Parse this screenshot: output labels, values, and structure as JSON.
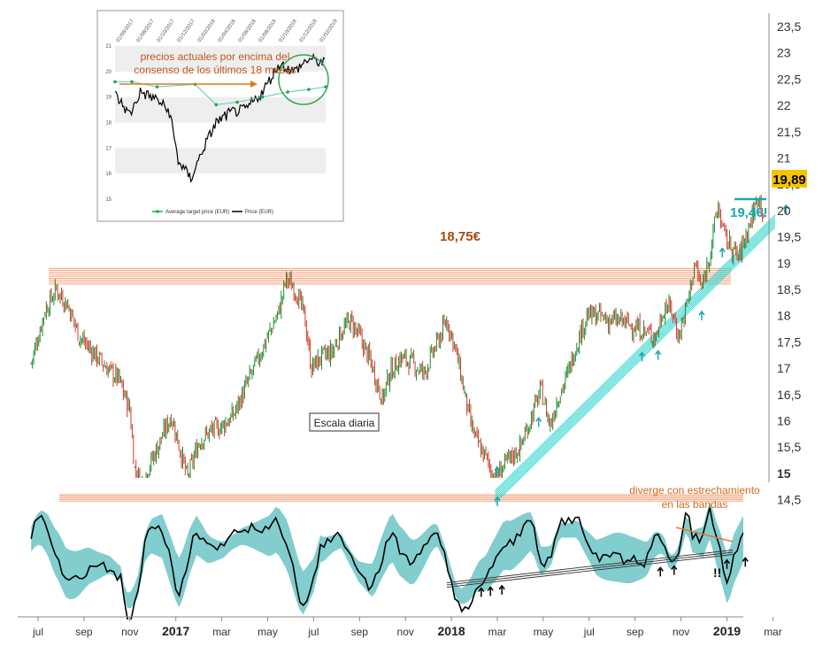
{
  "chart_data": [
    {
      "type": "candlestick",
      "title": "",
      "xlabel": "",
      "ylabel": "",
      "scale_note": "Escala diaria",
      "ylim": [
        14.3,
        23.6
      ],
      "y_ticks": [
        "23,5",
        "23",
        "22,5",
        "22",
        "21,5",
        "21",
        "20,5",
        "20",
        "19,5",
        "19",
        "18,5",
        "18",
        "17,5",
        "17",
        "16,5",
        "16",
        "15,5",
        "15",
        "14,5"
      ],
      "y_tick_values": [
        23.5,
        23,
        22.5,
        22,
        21.5,
        21,
        20.5,
        20,
        19.5,
        19,
        18.5,
        18,
        17.5,
        17,
        16.5,
        16,
        15.5,
        15,
        14.5
      ],
      "x_ticks": [
        {
          "label": "jul",
          "month": 0,
          "year": false
        },
        {
          "label": "sep",
          "month": 2,
          "year": false
        },
        {
          "label": "nov",
          "month": 4,
          "year": false
        },
        {
          "label": "2017",
          "month": 6,
          "year": true
        },
        {
          "label": "mar",
          "month": 8,
          "year": false
        },
        {
          "label": "may",
          "month": 10,
          "year": false
        },
        {
          "label": "jul",
          "month": 12,
          "year": false
        },
        {
          "label": "sep",
          "month": 14,
          "year": false
        },
        {
          "label": "nov",
          "month": 16,
          "year": false
        },
        {
          "label": "2018",
          "month": 18,
          "year": true
        },
        {
          "label": "mar",
          "month": 20,
          "year": false
        },
        {
          "label": "may",
          "month": 22,
          "year": false
        },
        {
          "label": "jul",
          "month": 24,
          "year": false
        },
        {
          "label": "sep",
          "month": 26,
          "year": false
        },
        {
          "label": "nov",
          "month": 28,
          "year": false
        },
        {
          "label": "2019",
          "month": 30,
          "year": true
        },
        {
          "label": "mar",
          "month": 32,
          "year": false
        }
      ],
      "price_path": [
        [
          -0.3,
          17.1
        ],
        [
          0.3,
          18.1
        ],
        [
          0.8,
          18.5
        ],
        [
          1.3,
          18.2
        ],
        [
          1.8,
          17.6
        ],
        [
          2.4,
          17.3
        ],
        [
          3.0,
          17.0
        ],
        [
          3.5,
          16.8
        ],
        [
          4.0,
          16.2
        ],
        [
          4.2,
          15.1
        ],
        [
          4.5,
          14.8
        ],
        [
          5.0,
          15.3
        ],
        [
          5.4,
          15.7
        ],
        [
          5.8,
          16.1
        ],
        [
          6.1,
          15.6
        ],
        [
          6.5,
          14.9
        ],
        [
          7.0,
          15.6
        ],
        [
          7.5,
          15.8
        ],
        [
          8.0,
          15.9
        ],
        [
          8.5,
          16.1
        ],
        [
          9.0,
          16.6
        ],
        [
          9.5,
          17.1
        ],
        [
          10.0,
          17.6
        ],
        [
          10.5,
          18.1
        ],
        [
          10.8,
          18.7
        ],
        [
          11.2,
          18.5
        ],
        [
          11.6,
          18.0
        ],
        [
          11.9,
          17.0
        ],
        [
          12.3,
          17.2
        ],
        [
          12.8,
          17.3
        ],
        [
          13.2,
          17.7
        ],
        [
          13.6,
          17.9
        ],
        [
          14.0,
          17.6
        ],
        [
          14.5,
          17.1
        ],
        [
          15.0,
          16.4
        ],
        [
          15.3,
          16.9
        ],
        [
          15.8,
          17.2
        ],
        [
          16.3,
          17.1
        ],
        [
          16.8,
          16.9
        ],
        [
          17.3,
          17.4
        ],
        [
          17.8,
          17.9
        ],
        [
          18.1,
          17.5
        ],
        [
          18.4,
          16.9
        ],
        [
          18.8,
          16.0
        ],
        [
          19.1,
          15.6
        ],
        [
          19.5,
          15.3
        ],
        [
          19.9,
          14.9
        ],
        [
          20.2,
          15.1
        ],
        [
          20.6,
          15.3
        ],
        [
          21.0,
          15.5
        ],
        [
          21.5,
          16.1
        ],
        [
          21.9,
          16.6
        ],
        [
          22.3,
          15.9
        ],
        [
          22.6,
          16.4
        ],
        [
          23.0,
          16.8
        ],
        [
          23.4,
          17.4
        ],
        [
          23.9,
          18.0
        ],
        [
          24.4,
          18.0
        ],
        [
          24.9,
          17.9
        ],
        [
          25.4,
          17.9
        ],
        [
          25.9,
          17.8
        ],
        [
          26.4,
          17.7
        ],
        [
          26.9,
          17.6
        ],
        [
          27.3,
          18.2
        ],
        [
          27.6,
          18.1
        ],
        [
          27.9,
          17.6
        ],
        [
          28.3,
          18.3
        ],
        [
          28.6,
          19.0
        ],
        [
          28.9,
          18.5
        ],
        [
          29.3,
          19.3
        ],
        [
          29.6,
          20.1
        ],
        [
          29.9,
          19.5
        ],
        [
          30.2,
          19.3
        ],
        [
          30.5,
          19.1
        ],
        [
          30.8,
          19.5
        ],
        [
          31.1,
          19.9
        ],
        [
          31.4,
          20.3
        ],
        [
          31.6,
          19.9
        ]
      ],
      "series": [
        {
          "name": "",
          "description_marks": "candles"
        }
      ],
      "levels": [
        {
          "value": 18.75,
          "label": "18,75€",
          "color": "#f3a07a"
        },
        {
          "value": 14.5,
          "label": "",
          "color": "#f3a07a"
        }
      ],
      "trendline": {
        "from": [
          19.9,
          14.55
        ],
        "to": [
          32.1,
          19.8
        ],
        "color": "#3ad7d0"
      },
      "last_price": {
        "value": 19.89,
        "label": "19,89",
        "color": "#f5c400"
      },
      "target": {
        "value": 19.4,
        "label": "19,4€!",
        "color": "#1aa7b0"
      },
      "support_arrows_months": [
        20.0,
        21.8,
        26.3,
        27.0,
        28.9,
        29.8
      ]
    },
    {
      "type": "area",
      "title": "",
      "annotation": "diverge con estrechamiento en las bandas",
      "mark": "!!",
      "line_color": "#000000",
      "band_color": "#6cc4c4",
      "support_arrows_months": [
        19.3,
        19.7,
        20.2,
        27.1,
        27.7,
        30.0,
        30.8
      ]
    },
    {
      "type": "line",
      "title": "",
      "annotation": "precios actuales por encima del consenso de los últimos 18 meses",
      "legend": [
        "Average target price (EUR)",
        "Price (EUR)"
      ],
      "y_ticks": [
        "21",
        "20",
        "19",
        "18",
        "17",
        "16",
        "15"
      ],
      "y_tick_values": [
        21,
        20,
        19,
        18,
        17,
        16,
        15
      ],
      "ylim": [
        15,
        21
      ],
      "x_ticks": [
        "01/06/2017",
        "01/08/2017",
        "01/10/2017",
        "01/12/2017",
        "01/02/2018",
        "01/04/2018",
        "01/06/2018",
        "01/08/2018",
        "01/10/2018",
        "01/12/2018",
        "01/02/2019"
      ],
      "series": [
        {
          "name": "Average target price (EUR)",
          "color": "#1fa84f",
          "values": [
            [
              0,
              19.6
            ],
            [
              0.08,
              19.6
            ],
            [
              0.2,
              19.4
            ],
            [
              0.38,
              19.5
            ],
            [
              0.48,
              18.7
            ],
            [
              0.58,
              18.8
            ],
            [
              0.7,
              19.0
            ],
            [
              0.82,
              19.2
            ],
            [
              0.92,
              19.3
            ],
            [
              1.0,
              19.4
            ]
          ]
        },
        {
          "name": "Price (EUR)",
          "color": "#000000",
          "values": [
            [
              0,
              19.1
            ],
            [
              0.07,
              18.3
            ],
            [
              0.12,
              19.2
            ],
            [
              0.2,
              18.9
            ],
            [
              0.26,
              18.4
            ],
            [
              0.3,
              16.5
            ],
            [
              0.36,
              15.8
            ],
            [
              0.42,
              17.0
            ],
            [
              0.48,
              18.0
            ],
            [
              0.55,
              18.4
            ],
            [
              0.62,
              18.5
            ],
            [
              0.7,
              19.2
            ],
            [
              0.78,
              20.3
            ],
            [
              0.85,
              20.0
            ],
            [
              0.92,
              20.5
            ],
            [
              1.0,
              20.3
            ]
          ]
        }
      ]
    }
  ]
}
